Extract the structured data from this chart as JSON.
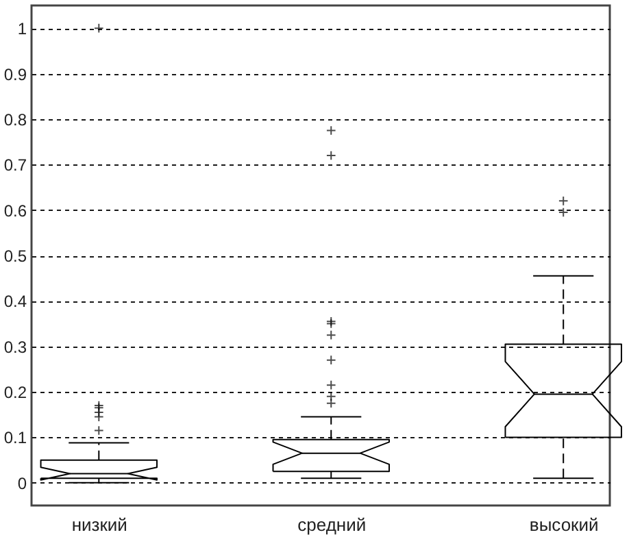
{
  "chart_data": {
    "type": "box",
    "categories": [
      "низкий",
      "средний",
      "высокий"
    ],
    "boxes": [
      {
        "low": 0.0,
        "q1": 0.01,
        "median": 0.02,
        "q3": 0.05,
        "high": 0.088,
        "outliers": [
          0.115,
          0.145,
          0.155,
          0.165,
          0.17,
          1.0
        ]
      },
      {
        "low": 0.01,
        "q1": 0.025,
        "median": 0.065,
        "q3": 0.095,
        "high": 0.145,
        "outliers": [
          0.175,
          0.19,
          0.215,
          0.27,
          0.325,
          0.35,
          0.355,
          0.72,
          0.775
        ]
      },
      {
        "low": 0.01,
        "q1": 0.1,
        "median": 0.195,
        "q3": 0.305,
        "high": 0.455,
        "outliers": [
          0.595,
          0.62
        ]
      }
    ],
    "ylim": [
      -0.05,
      1.05
    ],
    "yticks": [
      0,
      0.1,
      0.2,
      0.3,
      0.4,
      0.5,
      0.6,
      0.7,
      0.8,
      0.9,
      1
    ],
    "grid": "y",
    "marker": "cross"
  }
}
